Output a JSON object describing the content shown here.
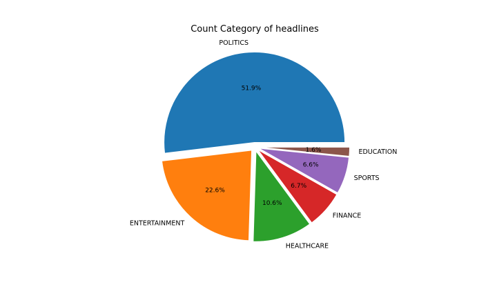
{
  "chart_data": {
    "type": "pie",
    "title": "Count Category of headlines",
    "slices": [
      {
        "label": "POLITICS",
        "value": 51.9,
        "pct_label": "51.9%",
        "color": "#1f77b4",
        "explode": 0.05
      },
      {
        "label": "ENTERTAINMENT",
        "value": 22.6,
        "pct_label": "22.6%",
        "color": "#ff7f0e",
        "explode": 0.05
      },
      {
        "label": "HEALTHCARE",
        "value": 10.6,
        "pct_label": "10.6%",
        "color": "#2ca02c",
        "explode": 0.05
      },
      {
        "label": "FINANCE",
        "value": 6.7,
        "pct_label": "6.7%",
        "color": "#d62728",
        "explode": 0.05
      },
      {
        "label": "SPORTS",
        "value": 6.6,
        "pct_label": "6.6%",
        "color": "#9467bd",
        "explode": 0.05
      },
      {
        "label": "EDUCATION",
        "value": 1.6,
        "pct_label": "1.6%",
        "color": "#8c564b",
        "explode": 0.05
      }
    ],
    "start_angle_deg": 0,
    "direction": "counterclockwise",
    "legend": "none"
  }
}
